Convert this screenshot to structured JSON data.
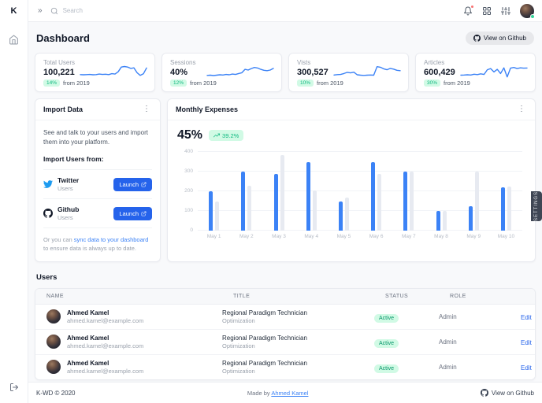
{
  "app": {
    "logo": "K"
  },
  "icons": {
    "chevrons": "»",
    "kebab": "⋮"
  },
  "navbar": {
    "search_placeholder": "Search"
  },
  "page": {
    "title": "Dashboard",
    "github_button_label": "View on Github"
  },
  "stats": [
    {
      "label": "Total Users",
      "value": "100,221",
      "badge": "14%",
      "suffix": "from 2019",
      "spark": [
        3,
        2.9,
        3,
        3.1,
        2.9,
        3,
        3.3,
        3.1,
        3.2,
        3,
        3.5,
        3.3,
        4.5,
        7,
        7.3,
        7,
        6.3,
        6.6,
        4,
        2.6,
        3.4,
        6.5
      ]
    },
    {
      "label": "Sessions",
      "value": "40%",
      "badge": "12%",
      "suffix": "from 2019",
      "spark": [
        2.6,
        2.7,
        2.5,
        2.7,
        2.9,
        2.8,
        3.1,
        2.9,
        3.3,
        3.1,
        3.6,
        4,
        5.8,
        5.4,
        6.2,
        6.8,
        6.5,
        5.8,
        5.3,
        5.1,
        5.4,
        6.3
      ]
    },
    {
      "label": "Vists",
      "value": "300,527",
      "badge": "10%",
      "suffix": "from 2019",
      "spark": [
        2.8,
        3,
        3.1,
        3.6,
        4.2,
        3.9,
        4.3,
        2.9,
        2.7,
        2.6,
        2.7,
        2.8,
        2.7,
        7.2,
        6.9,
        6.1,
        5.6,
        6.3,
        5.9,
        5.3,
        5.1
      ]
    },
    {
      "label": "Articles",
      "value": "600,429",
      "badge": "30%",
      "suffix": "from 2019",
      "spark": [
        2.7,
        2.8,
        2.9,
        2.8,
        3.2,
        3,
        3.4,
        3.1,
        5.6,
        6.2,
        4.4,
        5.8,
        3.6,
        6.6,
        1.8,
        6.4,
        6.8,
        6.2,
        6.6,
        6.4,
        6.5
      ]
    }
  ],
  "import_card": {
    "title": "Import Data",
    "description": "See and talk to your users and import them into your platform.",
    "subheading": "Import Users from:",
    "sources": [
      {
        "name": "Twitter",
        "sub": "Users",
        "button": "Launch"
      },
      {
        "name": "Github",
        "sub": "Users",
        "button": "Launch"
      }
    ],
    "footer_prefix": "Or you can ",
    "footer_link": "sync data to your dashboard",
    "footer_suffix": " to ensure data is always up to date."
  },
  "expenses_card": {
    "title": "Monthly Expenses",
    "value": "45%",
    "badge": "39.2%"
  },
  "chart_data": {
    "type": "bar",
    "title": "Monthly Expenses",
    "categories": [
      "May 1",
      "May 2",
      "May 3",
      "May 4",
      "May 5",
      "May 6",
      "May 7",
      "May 8",
      "May 9",
      "May 10"
    ],
    "series": [
      {
        "name": "expenses-primary",
        "color": "#3b82f6",
        "values": [
          200,
          300,
          290,
          350,
          150,
          350,
          300,
          100,
          125,
          220
        ]
      },
      {
        "name": "expenses-secondary",
        "color": "#e7eaf1",
        "values": [
          150,
          230,
          385,
          205,
          170,
          290,
          300,
          100,
          300,
          225
        ]
      }
    ],
    "xlabel": "",
    "ylabel": "",
    "ylim": [
      0,
      400
    ],
    "yticks": [
      0,
      100,
      200,
      300,
      400
    ],
    "grid": true,
    "legend": false
  },
  "settings_tab": "SETTINGS",
  "users": {
    "title": "Users",
    "columns": [
      "NAME",
      "TITLE",
      "STATUS",
      "ROLE"
    ],
    "rows": [
      {
        "name": "Ahmed Kamel",
        "email": "ahmed.kamel@example.com",
        "title": "Regional Paradigm Technician",
        "subtitle": "Optimization",
        "status": "Active",
        "role": "Admin",
        "action": "Edit"
      },
      {
        "name": "Ahmed Kamel",
        "email": "ahmed.kamel@example.com",
        "title": "Regional Paradigm Technician",
        "subtitle": "Optimization",
        "status": "Active",
        "role": "Admin",
        "action": "Edit"
      },
      {
        "name": "Ahmed Kamel",
        "email": "ahmed.kamel@example.com",
        "title": "Regional Paradigm Technician",
        "subtitle": "Optimization",
        "status": "Active",
        "role": "Admin",
        "action": "Edit"
      }
    ]
  },
  "footer": {
    "copyright": "K-WD © 2020",
    "made_by_prefix": "Made by ",
    "made_by_link": "Ahmed Kamel",
    "github_label": "View on Github"
  },
  "colors": {
    "accent_blue": "#3b82f6",
    "button_blue": "#2563eb",
    "badge_green_bg": "#d1fae5",
    "badge_green_text": "#10b981",
    "bar_gray": "#e7eaf1"
  }
}
